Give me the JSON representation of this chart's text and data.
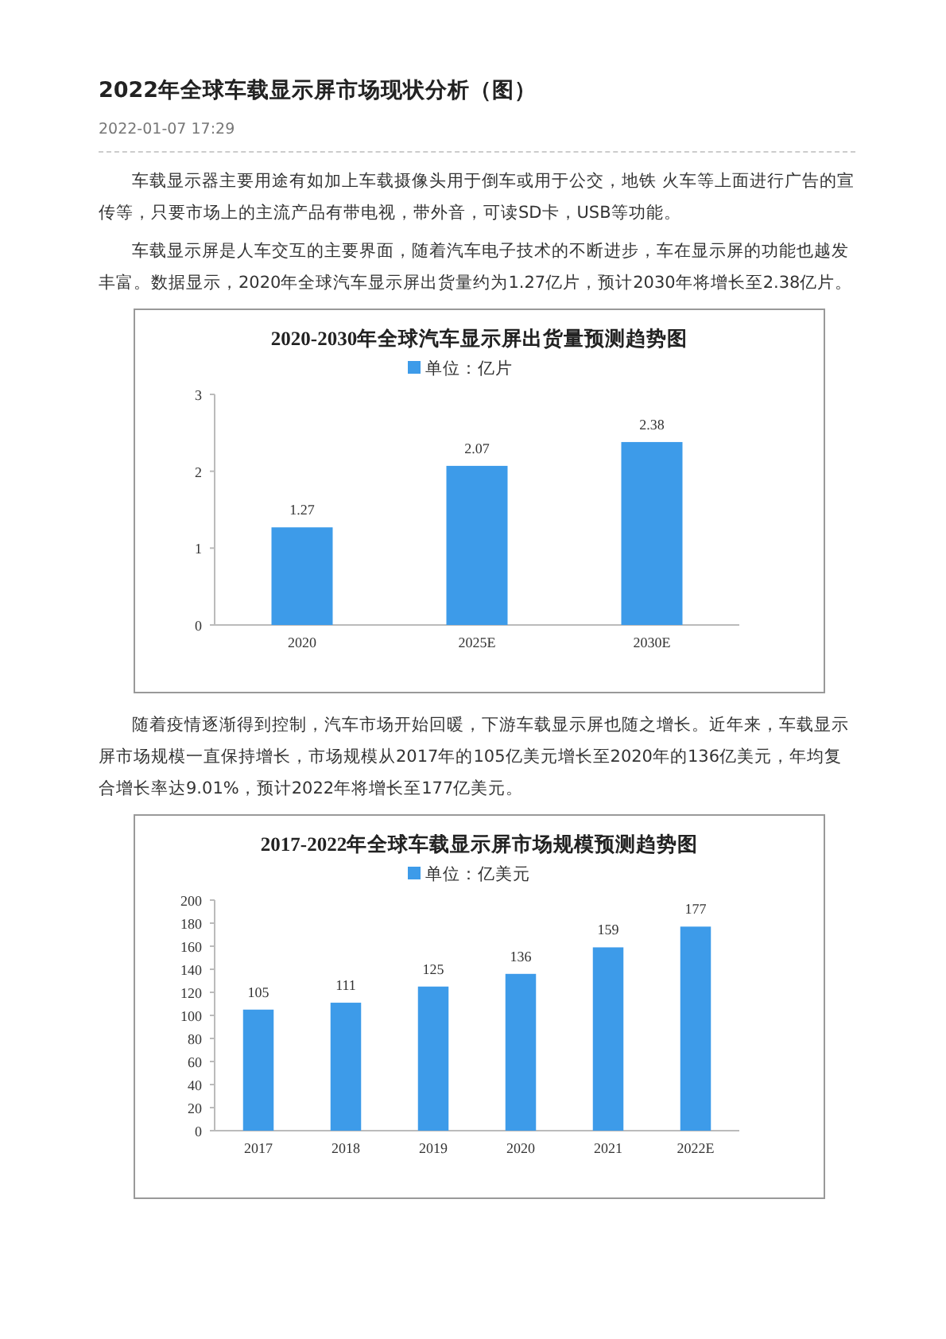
{
  "chart_data": [
    {
      "type": "bar",
      "title": "2020-2030年全球汽车显示屏出货量预测趋势图",
      "categories": [
        "2020",
        "2025E",
        "2030E"
      ],
      "series": [
        {
          "name": "单位：亿片",
          "color": "#3d9be9",
          "values": [
            1.27,
            2.07,
            2.38
          ]
        }
      ],
      "ylim": [
        0,
        3
      ],
      "yticks": [
        0,
        1,
        2,
        3
      ],
      "data_labels": true,
      "legend": "top",
      "grid": false,
      "annotations": [
        "2022年全球车载显示屏市场现状分析（图）",
        "2022-01-07 17:29",
        "车载显示器主要用途有如加上车载摄像头用于倒车或用于公交，地铁 火车等上面进行广告的宣传等，只要市场上的主流产品有带电视，带外音，可读SD卡，USB等功能。",
        "车载显示屏是人车交互的主要界面，随着汽车电子技术的不断进步，车在显示屏的功能也越发丰富。数据显示，2020年全球汽车显示屏出货量约为1.27亿片，预计2030年将增长至2.38亿片。"
      ]
    },
    {
      "type": "bar",
      "title": "2017-2022年全球车载显示屏市场规模预测趋势图",
      "categories": [
        "2017",
        "2018",
        "2019",
        "2020",
        "2021",
        "2022E"
      ],
      "series": [
        {
          "name": "单位：亿美元",
          "color": "#3d9be9",
          "values": [
            105,
            111,
            125,
            136,
            159,
            177
          ]
        }
      ],
      "ylim": [
        0,
        200
      ],
      "yticks": [
        0,
        20,
        40,
        60,
        80,
        100,
        120,
        140,
        160,
        180,
        200
      ],
      "data_labels": true,
      "legend": "top",
      "grid": false,
      "annotations": [
        "随着疫情逐渐得到控制，汽车市场开始回暖，下游车载显示屏也随之增长。近年来，车载显示屏市场规模一直保持增长，市场规模从2017年的105亿美元增长至2020年的136亿美元，年均复合增长率达9.01%，预计2022年将增长至177亿美元。"
      ]
    }
  ]
}
